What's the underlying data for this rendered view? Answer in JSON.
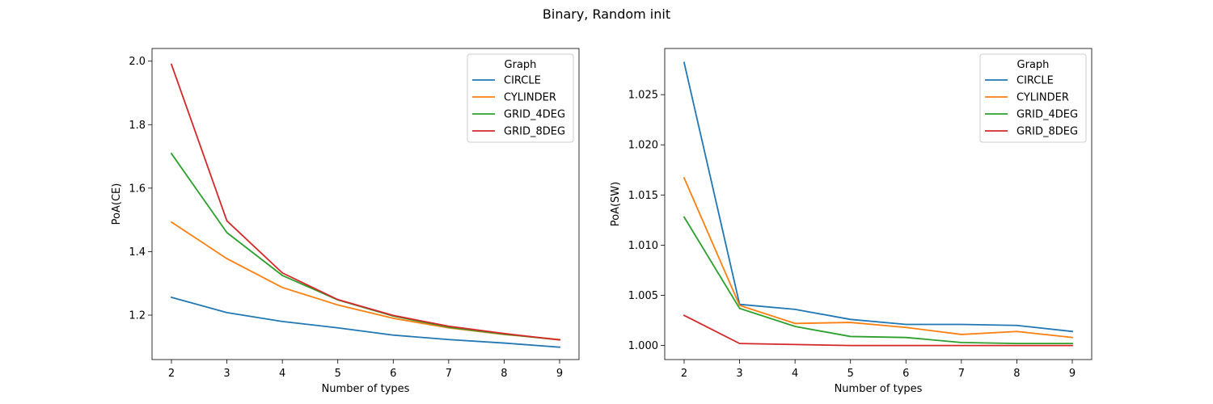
{
  "figure": {
    "title": "Binary, Random init"
  },
  "chart_data": [
    {
      "type": "line",
      "xlabel": "Number of types",
      "ylabel": "PoA(CE)",
      "x": [
        2,
        3,
        4,
        5,
        6,
        7,
        8,
        9
      ],
      "xlim": [
        1.65,
        9.35
      ],
      "ylim": [
        1.06,
        2.04
      ],
      "xticks": [
        "2",
        "3",
        "4",
        "5",
        "6",
        "7",
        "8",
        "9"
      ],
      "yticks": [
        1.2,
        1.4,
        1.6,
        1.8,
        2.0
      ],
      "ytick_labels": [
        "1.2",
        "1.4",
        "1.6",
        "1.8",
        "2.0"
      ],
      "grid": false,
      "legend": {
        "title": "Graph",
        "placement": "top-right"
      },
      "series": [
        {
          "name": "CIRCLE",
          "color": "#1f77b4",
          "values": [
            1.256,
            1.208,
            1.18,
            1.16,
            1.137,
            1.123,
            1.112,
            1.099
          ]
        },
        {
          "name": "CYLINDER",
          "color": "#ff7f0e",
          "values": [
            1.493,
            1.378,
            1.287,
            1.232,
            1.19,
            1.16,
            1.139,
            1.123
          ]
        },
        {
          "name": "GRID_4DEG",
          "color": "#2ca02c",
          "values": [
            1.709,
            1.46,
            1.325,
            1.248,
            1.197,
            1.162,
            1.14,
            1.122
          ]
        },
        {
          "name": "GRID_8DEG",
          "color": "#d62728",
          "values": [
            1.99,
            1.497,
            1.333,
            1.249,
            1.199,
            1.165,
            1.142,
            1.122
          ]
        }
      ]
    },
    {
      "type": "line",
      "xlabel": "Number of types",
      "ylabel": "PoA(SW)",
      "x": [
        2,
        3,
        4,
        5,
        6,
        7,
        8,
        9
      ],
      "xlim": [
        1.65,
        9.35
      ],
      "ylim": [
        0.9986,
        1.0296
      ],
      "xticks": [
        "2",
        "3",
        "4",
        "5",
        "6",
        "7",
        "8",
        "9"
      ],
      "yticks": [
        1.0,
        1.005,
        1.01,
        1.015,
        1.02,
        1.025
      ],
      "ytick_labels": [
        "1.000",
        "1.005",
        "1.010",
        "1.015",
        "1.020",
        "1.025"
      ],
      "grid": false,
      "legend": {
        "title": "Graph",
        "placement": "top-right"
      },
      "series": [
        {
          "name": "CIRCLE",
          "color": "#1f77b4",
          "values": [
            1.0282,
            1.0041,
            1.0036,
            1.0026,
            1.0021,
            1.0021,
            1.002,
            1.0014
          ]
        },
        {
          "name": "CYLINDER",
          "color": "#ff7f0e",
          "values": [
            1.0167,
            1.004,
            1.0022,
            1.0023,
            1.0018,
            1.0011,
            1.0014,
            1.0008
          ]
        },
        {
          "name": "GRID_4DEG",
          "color": "#2ca02c",
          "values": [
            1.0128,
            1.0037,
            1.0019,
            1.0009,
            1.0008,
            1.0003,
            1.0002,
            1.0002
          ]
        },
        {
          "name": "GRID_8DEG",
          "color": "#d62728",
          "values": [
            1.003,
            1.0002,
            1.0001,
            1.0,
            1.0,
            1.0,
            1.0,
            1.0
          ]
        }
      ]
    }
  ]
}
